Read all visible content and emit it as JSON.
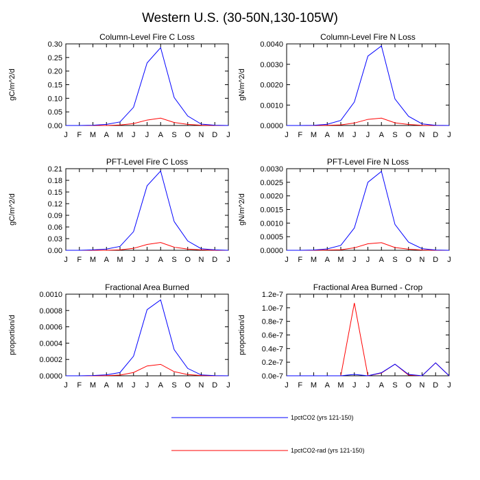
{
  "title": "Western U.S. (30-50N,130-105W)",
  "legend": [
    {
      "label": "1pctCO2 (yrs 121-150)",
      "color": "#0000ff"
    },
    {
      "label": "1pctCO2-rad (yrs 121-150)",
      "color": "#ff0000"
    }
  ],
  "colors": {
    "blue": "#0000ff",
    "red": "#ff0000",
    "axis": "#000000"
  },
  "chart_data": [
    {
      "type": "line",
      "title": "Column-Level Fire C Loss",
      "xlabel": "",
      "ylabel": "gC/m^2/d",
      "categories": [
        "J",
        "F",
        "M",
        "A",
        "M",
        "J",
        "J",
        "A",
        "S",
        "O",
        "N",
        "D",
        "J"
      ],
      "ylim": [
        0,
        0.3
      ],
      "yticks": [
        0.0,
        0.05,
        0.1,
        0.15,
        0.2,
        0.25,
        0.3
      ],
      "ytick_labels": [
        "0.00",
        "0.05",
        "0.10",
        "0.15",
        "0.20",
        "0.25",
        "0.30"
      ],
      "series": [
        {
          "name": "1pctCO2 (yrs 121-150)",
          "color": "#0000ff",
          "values": [
            0.0,
            0.0,
            0.001,
            0.004,
            0.013,
            0.067,
            0.23,
            0.286,
            0.103,
            0.035,
            0.005,
            0.001,
            0.0
          ]
        },
        {
          "name": "1pctCO2-rad (yrs 121-150)",
          "color": "#ff0000",
          "values": [
            0.0,
            0.0,
            0.0,
            0.0,
            0.002,
            0.007,
            0.02,
            0.027,
            0.011,
            0.004,
            0.001,
            0.0,
            0.0
          ]
        }
      ]
    },
    {
      "type": "line",
      "title": "Column-Level Fire N Loss",
      "xlabel": "",
      "ylabel": "gN/m^2/d",
      "categories": [
        "J",
        "F",
        "M",
        "A",
        "M",
        "J",
        "J",
        "A",
        "S",
        "O",
        "N",
        "D",
        "J"
      ],
      "ylim": [
        0,
        0.004
      ],
      "yticks": [
        0.0,
        0.001,
        0.002,
        0.003,
        0.004
      ],
      "ytick_labels": [
        "0.0000",
        "0.0010",
        "0.0020",
        "0.0030",
        "0.0040"
      ],
      "series": [
        {
          "name": "1pctCO2 (yrs 121-150)",
          "color": "#0000ff",
          "values": [
            0.0,
            0.0,
            1e-05,
            6e-05,
            0.00025,
            0.00115,
            0.0034,
            0.0039,
            0.0013,
            0.00045,
            8e-05,
            1e-05,
            0.0
          ]
        },
        {
          "name": "1pctCO2-rad (yrs 121-150)",
          "color": "#ff0000",
          "values": [
            0.0,
            0.0,
            0.0,
            1e-05,
            3e-05,
            0.00012,
            0.0003,
            0.00036,
            0.00013,
            5e-05,
            1e-05,
            0.0,
            0.0
          ]
        }
      ]
    },
    {
      "type": "line",
      "title": "PFT-Level Fire C Loss",
      "xlabel": "",
      "ylabel": "gC/m^2/d",
      "categories": [
        "J",
        "F",
        "M",
        "A",
        "M",
        "J",
        "J",
        "A",
        "S",
        "O",
        "N",
        "D",
        "J"
      ],
      "ylim": [
        0,
        0.21
      ],
      "yticks": [
        0.0,
        0.03,
        0.06,
        0.09,
        0.12,
        0.15,
        0.18,
        0.21
      ],
      "ytick_labels": [
        "0.00",
        "0.03",
        "0.06",
        "0.09",
        "0.12",
        "0.15",
        "0.18",
        "0.21"
      ],
      "series": [
        {
          "name": "1pctCO2 (yrs 121-150)",
          "color": "#0000ff",
          "values": [
            0.0,
            0.0,
            0.001,
            0.003,
            0.01,
            0.048,
            0.166,
            0.204,
            0.074,
            0.024,
            0.004,
            0.001,
            0.0
          ]
        },
        {
          "name": "1pctCO2-rad (yrs 121-150)",
          "color": "#ff0000",
          "values": [
            0.0,
            0.0,
            0.0,
            0.0,
            0.001,
            0.005,
            0.015,
            0.02,
            0.008,
            0.003,
            0.001,
            0.0,
            0.0
          ]
        }
      ]
    },
    {
      "type": "line",
      "title": "PFT-Level Fire N Loss",
      "xlabel": "",
      "ylabel": "gN/m^2/d",
      "categories": [
        "J",
        "F",
        "M",
        "A",
        "M",
        "J",
        "J",
        "A",
        "S",
        "O",
        "N",
        "D",
        "J"
      ],
      "ylim": [
        0,
        0.003
      ],
      "yticks": [
        0.0,
        0.0005,
        0.001,
        0.0015,
        0.002,
        0.0025,
        0.003
      ],
      "ytick_labels": [
        "0.0000",
        "0.0005",
        "0.0010",
        "0.0015",
        "0.0020",
        "0.0025",
        "0.0030"
      ],
      "series": [
        {
          "name": "1pctCO2 (yrs 121-150)",
          "color": "#0000ff",
          "values": [
            0.0,
            0.0,
            1e-05,
            5e-05,
            0.00018,
            0.00082,
            0.0025,
            0.0029,
            0.00095,
            0.0003,
            6e-05,
            1e-05,
            0.0
          ]
        },
        {
          "name": "1pctCO2-rad (yrs 121-150)",
          "color": "#ff0000",
          "values": [
            0.0,
            0.0,
            0.0,
            1e-05,
            2e-05,
            9e-05,
            0.00024,
            0.00028,
            0.0001,
            4e-05,
            1e-05,
            0.0,
            0.0
          ]
        }
      ]
    },
    {
      "type": "line",
      "title": "Fractional Area Burned",
      "xlabel": "",
      "ylabel": "proportion/d",
      "categories": [
        "J",
        "F",
        "M",
        "A",
        "M",
        "J",
        "J",
        "A",
        "S",
        "O",
        "N",
        "D",
        "J"
      ],
      "ylim": [
        0,
        0.001
      ],
      "yticks": [
        0.0,
        0.0002,
        0.0004,
        0.0006,
        0.0008,
        0.001
      ],
      "ytick_labels": [
        "0.0000",
        "0.0002",
        "0.0004",
        "0.0006",
        "0.0008",
        "0.0010"
      ],
      "series": [
        {
          "name": "1pctCO2 (yrs 121-150)",
          "color": "#0000ff",
          "values": [
            0.0,
            0.0,
            3e-06,
            1.2e-05,
            4e-05,
            0.00024,
            0.00081,
            0.00093,
            0.00032,
            9e-05,
            1e-05,
            2e-06,
            0.0
          ]
        },
        {
          "name": "1pctCO2-rad (yrs 121-150)",
          "color": "#ff0000",
          "values": [
            0.0,
            0.0,
            0.0,
            2e-06,
            8e-06,
            4e-05,
            0.00012,
            0.00014,
            5e-05,
            1.5e-05,
            3e-06,
            0.0,
            0.0
          ]
        }
      ]
    },
    {
      "type": "line",
      "title": "Fractional Area Burned - Crop",
      "xlabel": "",
      "ylabel": "proportion/d",
      "categories": [
        "J",
        "F",
        "M",
        "A",
        "M",
        "J",
        "J",
        "A",
        "S",
        "O",
        "N",
        "D",
        "J"
      ],
      "ylim": [
        0,
        1.2e-07
      ],
      "yticks": [
        0,
        2e-08,
        4e-08,
        6e-08,
        8e-08,
        1e-07,
        1.2e-07
      ],
      "ytick_labels": [
        "0.0e-7",
        "0.2e-7",
        "0.4e-7",
        "0.6e-7",
        "0.8e-7",
        "1.0e-7",
        "1.2e-7"
      ],
      "series": [
        {
          "name": "1pctCO2 (yrs 121-150)",
          "color": "#0000ff",
          "values": [
            0,
            0,
            0,
            0,
            0,
            2e-09,
            0,
            4.5e-09,
            1.7e-08,
            2e-09,
            0,
            1.9e-08,
            0
          ]
        },
        {
          "name": "1pctCO2-rad (yrs 121-150)",
          "color": "#ff0000",
          "values": [
            0,
            0,
            0,
            0,
            0,
            1.07e-07,
            0,
            4e-09,
            1.7e-08,
            1e-09,
            0,
            1.9e-08,
            0
          ]
        }
      ]
    }
  ]
}
